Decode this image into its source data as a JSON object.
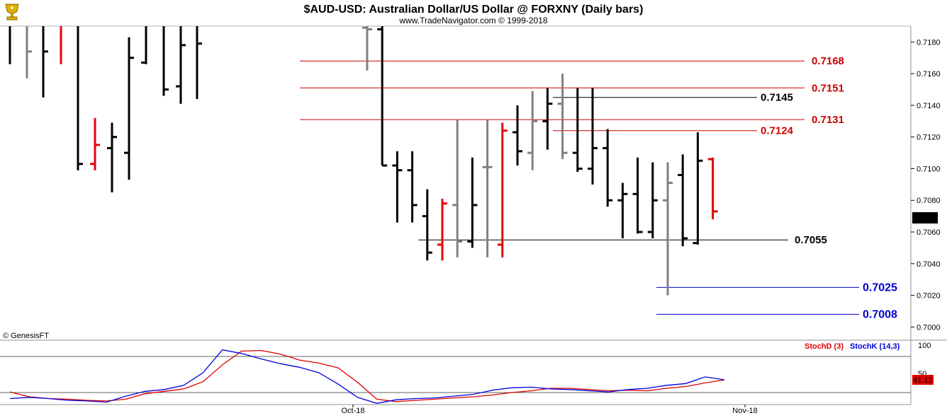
{
  "header": {
    "title": "$AUD-USD:  Australian Dollar/US Dollar @ FORXNY  (Daily bars)",
    "subtitle": "www.TradeNavigator.com © 1999-2018",
    "logo_icon": "golden-trophy-icon",
    "copyright": "© GenesisFT"
  },
  "colors": {
    "up_bar": "#000000",
    "down_bar": "#e8000b",
    "neutral_bar": "#808080",
    "resistance": "#cc0000",
    "support_black": "#000000",
    "support_blue": "#0000cc",
    "stoch_d": "#e00000",
    "stoch_k": "#0000dd"
  },
  "price_axis": {
    "ticks": [
      "0.7180",
      "0.7160",
      "0.7140",
      "0.7120",
      "0.7100",
      "0.7080",
      "0.7060",
      "0.7040",
      "0.7020",
      "0.7000"
    ],
    "last_price": "0.7073"
  },
  "time_axis": {
    "labels": [
      "Oct-18",
      "Nov-18"
    ]
  },
  "levels": [
    {
      "label": "0.7168",
      "value": 0.7168,
      "color": "#cc0000"
    },
    {
      "label": "0.7151",
      "value": 0.7151,
      "color": "#cc0000"
    },
    {
      "label": "0.7145",
      "value": 0.7145,
      "color": "#000000"
    },
    {
      "label": "0.7131",
      "value": 0.7131,
      "color": "#cc0000"
    },
    {
      "label": "0.7124",
      "value": 0.7124,
      "color": "#cc0000"
    },
    {
      "label": "0.7055",
      "value": 0.7055,
      "color": "#000000"
    },
    {
      "label": "0.7025",
      "value": 0.7025,
      "color": "#0000cc"
    },
    {
      "label": "0.7008",
      "value": 0.7008,
      "color": "#0000cc"
    }
  ],
  "stoch": {
    "label_d": "StochD (3)",
    "label_k": "StochK (14,3)",
    "axis_top": "100",
    "axis_mid": "50",
    "last_value": "41.12"
  },
  "chart_data": [
    {
      "type": "ohlc",
      "title": "$AUD-USD:  Australian Dollar/US Dollar @ FORXNY  (Daily bars)",
      "ylim": [
        0.6993,
        0.719
      ],
      "x_labels": [
        "Oct-18",
        "Nov-18"
      ],
      "bars": [
        {
          "o": 0.719,
          "h": 0.719,
          "l": 0.7166,
          "c": 0.719,
          "color": "black"
        },
        {
          "o": 0.719,
          "h": 0.719,
          "l": 0.7157,
          "c": 0.7174,
          "color": "gray"
        },
        {
          "o": 0.719,
          "h": 0.719,
          "l": 0.7145,
          "c": 0.7174,
          "color": "black"
        },
        {
          "o": 0.719,
          "h": 0.719,
          "l": 0.7166,
          "c": 0.719,
          "color": "red"
        },
        {
          "o": 0.719,
          "h": 0.719,
          "l": 0.7099,
          "c": 0.7103,
          "color": "black"
        },
        {
          "o": 0.7103,
          "h": 0.7132,
          "l": 0.7099,
          "c": 0.7115,
          "color": "red"
        },
        {
          "o": 0.7113,
          "h": 0.7129,
          "l": 0.7085,
          "c": 0.712,
          "color": "black"
        },
        {
          "o": 0.711,
          "h": 0.7183,
          "l": 0.7093,
          "c": 0.717,
          "color": "black"
        },
        {
          "o": 0.7167,
          "h": 0.719,
          "l": 0.7166,
          "c": 0.719,
          "color": "black"
        },
        {
          "o": 0.719,
          "h": 0.719,
          "l": 0.7146,
          "c": 0.715,
          "color": "black"
        },
        {
          "o": 0.7152,
          "h": 0.719,
          "l": 0.7141,
          "c": 0.7178,
          "color": "black"
        },
        {
          "o": 0.719,
          "h": 0.719,
          "l": 0.7144,
          "c": 0.7179,
          "color": "black"
        },
        {
          "o": 0.7189,
          "h": 0.719,
          "l": 0.7162,
          "c": 0.7188,
          "color": "gray"
        },
        {
          "o": 0.7188,
          "h": 0.719,
          "l": 0.7102,
          "c": 0.7102,
          "color": "black"
        },
        {
          "o": 0.7102,
          "h": 0.7111,
          "l": 0.7066,
          "c": 0.7099,
          "color": "black"
        },
        {
          "o": 0.7099,
          "h": 0.7111,
          "l": 0.7066,
          "c": 0.7077,
          "color": "black"
        },
        {
          "o": 0.707,
          "h": 0.7087,
          "l": 0.7042,
          "c": 0.7047,
          "color": "black"
        },
        {
          "o": 0.7052,
          "h": 0.7081,
          "l": 0.7042,
          "c": 0.7078,
          "color": "red"
        },
        {
          "o": 0.7077,
          "h": 0.7131,
          "l": 0.7044,
          "c": 0.7054,
          "color": "gray"
        },
        {
          "o": 0.7054,
          "h": 0.7107,
          "l": 0.705,
          "c": 0.7077,
          "color": "black"
        },
        {
          "o": 0.7101,
          "h": 0.7131,
          "l": 0.7044,
          "c": 0.7101,
          "color": "gray"
        },
        {
          "o": 0.7052,
          "h": 0.7129,
          "l": 0.7044,
          "c": 0.7124,
          "color": "red"
        },
        {
          "o": 0.7123,
          "h": 0.714,
          "l": 0.7102,
          "c": 0.7111,
          "color": "black"
        },
        {
          "o": 0.711,
          "h": 0.7149,
          "l": 0.7099,
          "c": 0.713,
          "color": "gray"
        },
        {
          "o": 0.713,
          "h": 0.7151,
          "l": 0.7112,
          "c": 0.7141,
          "color": "black"
        },
        {
          "o": 0.7141,
          "h": 0.716,
          "l": 0.7106,
          "c": 0.711,
          "color": "gray"
        },
        {
          "o": 0.711,
          "h": 0.7151,
          "l": 0.7098,
          "c": 0.71,
          "color": "black"
        },
        {
          "o": 0.71,
          "h": 0.7151,
          "l": 0.709,
          "c": 0.7113,
          "color": "black"
        },
        {
          "o": 0.7113,
          "h": 0.7125,
          "l": 0.7076,
          "c": 0.708,
          "color": "black"
        },
        {
          "o": 0.708,
          "h": 0.7091,
          "l": 0.7056,
          "c": 0.7084,
          "color": "black"
        },
        {
          "o": 0.7084,
          "h": 0.7107,
          "l": 0.7059,
          "c": 0.706,
          "color": "black"
        },
        {
          "o": 0.706,
          "h": 0.7104,
          "l": 0.7056,
          "c": 0.708,
          "color": "black"
        },
        {
          "o": 0.708,
          "h": 0.7104,
          "l": 0.702,
          "c": 0.7091,
          "color": "gray"
        },
        {
          "o": 0.7096,
          "h": 0.7109,
          "l": 0.7051,
          "c": 0.7056,
          "color": "black"
        },
        {
          "o": 0.7053,
          "h": 0.7123,
          "l": 0.7052,
          "c": 0.7105,
          "color": "black"
        },
        {
          "o": 0.7106,
          "h": 0.7107,
          "l": 0.7068,
          "c": 0.7073,
          "color": "red"
        }
      ]
    },
    {
      "type": "line",
      "title": "Stochastic",
      "ylim": [
        0,
        100
      ],
      "series": [
        {
          "name": "StochD (3)",
          "values": [
            21,
            13,
            10,
            9,
            7,
            6,
            9,
            18,
            22,
            26,
            38,
            66,
            89,
            90,
            84,
            74,
            69,
            61,
            37,
            9,
            5,
            7,
            9,
            11,
            13,
            16,
            20,
            23,
            27,
            27,
            25,
            23,
            24,
            23,
            27,
            30,
            36,
            41
          ]
        },
        {
          "name": "StochK (14,3)",
          "values": [
            10,
            12,
            10,
            7,
            6,
            4,
            14,
            22,
            25,
            32,
            53,
            91,
            85,
            76,
            68,
            62,
            53,
            34,
            12,
            2,
            8,
            10,
            11,
            14,
            17,
            24,
            28,
            29,
            26,
            25,
            23,
            21,
            25,
            27,
            32,
            35,
            46,
            41.12
          ]
        }
      ]
    }
  ]
}
